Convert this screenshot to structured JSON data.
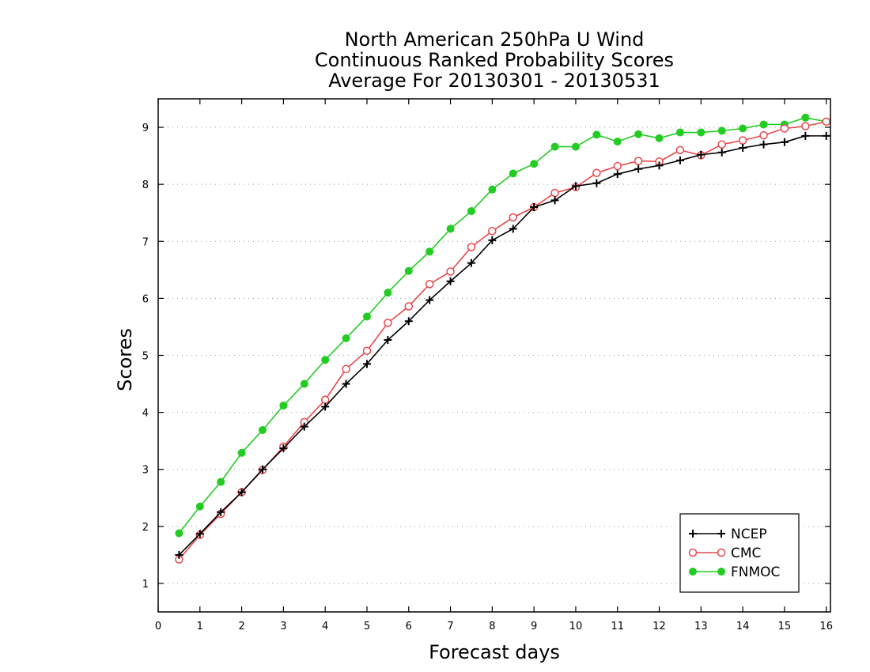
{
  "chart_data": {
    "type": "line",
    "title_lines": [
      "North American 250hPa U Wind",
      "Continuous Ranked Probability Scores",
      "Average For 20130301 - 20130531"
    ],
    "xlabel": "Forecast days",
    "ylabel": "Scores",
    "xlim": [
      0,
      16.1
    ],
    "ylim": [
      0.5,
      9.5
    ],
    "xticks": [
      0,
      1,
      2,
      3,
      4,
      5,
      6,
      7,
      8,
      9,
      10,
      11,
      12,
      13,
      14,
      15,
      16
    ],
    "yticks": [
      1,
      2,
      3,
      4,
      5,
      6,
      7,
      8,
      9
    ],
    "grid": "horizontal dotted",
    "legend_position": "bottom-right",
    "x": [
      0.5,
      1,
      1.5,
      2,
      2.5,
      3,
      3.5,
      4,
      4.5,
      5,
      5.5,
      6,
      6.5,
      7,
      7.5,
      8,
      8.5,
      9,
      9.5,
      10,
      10.5,
      11,
      11.5,
      12,
      12.5,
      13,
      13.5,
      14,
      14.5,
      15,
      15.5,
      16
    ],
    "series": [
      {
        "name": "NCEP",
        "color": "#000000",
        "marker": "plus",
        "values": [
          1.5,
          1.87,
          2.25,
          2.6,
          3.0,
          3.37,
          3.75,
          4.1,
          4.5,
          4.85,
          5.27,
          5.6,
          5.97,
          6.3,
          6.62,
          7.02,
          7.22,
          7.6,
          7.72,
          7.97,
          8.02,
          8.18,
          8.27,
          8.33,
          8.42,
          8.52,
          8.56,
          8.64,
          8.7,
          8.74,
          8.85,
          8.85
        ]
      },
      {
        "name": "CMC",
        "color": "#e8474c",
        "marker": "open-circle",
        "values": [
          1.42,
          1.85,
          2.22,
          2.6,
          2.99,
          3.4,
          3.83,
          4.22,
          4.76,
          5.08,
          5.57,
          5.86,
          6.25,
          6.47,
          6.9,
          7.18,
          7.42,
          7.6,
          7.85,
          7.95,
          8.2,
          8.32,
          8.41,
          8.4,
          8.6,
          8.51,
          8.7,
          8.77,
          8.86,
          8.98,
          9.02,
          9.1
        ]
      },
      {
        "name": "FNMOC",
        "color": "#22cc22",
        "marker": "filled-circle",
        "values": [
          1.88,
          2.35,
          2.78,
          3.29,
          3.69,
          4.12,
          4.5,
          4.92,
          5.3,
          5.68,
          6.1,
          6.48,
          6.82,
          7.22,
          7.53,
          7.91,
          8.19,
          8.36,
          8.66,
          8.66,
          8.87,
          8.75,
          8.88,
          8.81,
          8.91,
          8.91,
          8.94,
          8.98,
          9.05,
          9.05,
          9.17,
          9.1
        ]
      }
    ]
  }
}
